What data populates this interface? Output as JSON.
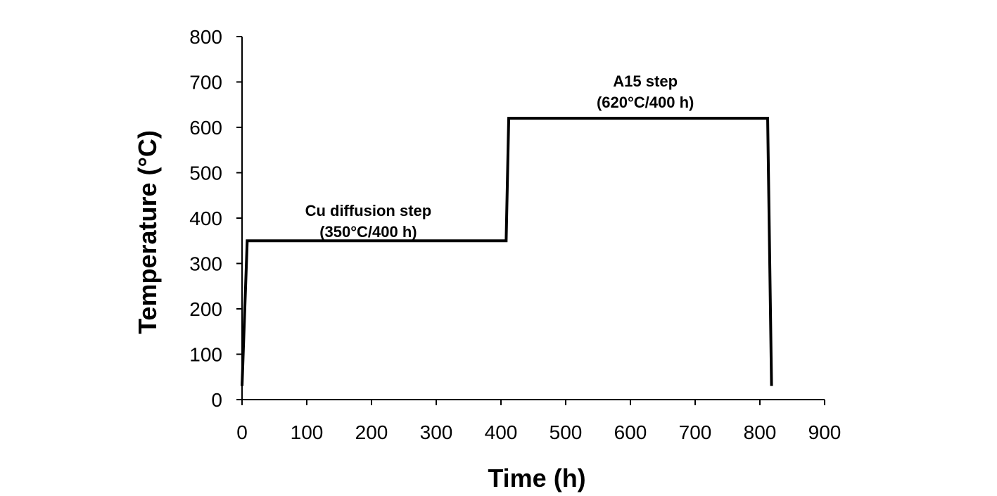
{
  "chart_data": {
    "type": "line",
    "xlabel": "Time (h)",
    "ylabel": "Temperature (°C)",
    "xlim": [
      0,
      900
    ],
    "ylim": [
      0,
      800
    ],
    "xticks": [
      0,
      100,
      200,
      300,
      400,
      500,
      600,
      700,
      800,
      900
    ],
    "yticks": [
      0,
      100,
      200,
      300,
      400,
      500,
      600,
      700,
      800
    ],
    "grid": false,
    "series": [
      {
        "x": [
          0,
          8,
          408,
          412,
          812,
          818
        ],
        "y": [
          30,
          350,
          350,
          620,
          620,
          30
        ],
        "color": "#000000"
      }
    ],
    "annotations": [
      {
        "lines": [
          "Cu diffusion step",
          "(350°C/400 h)"
        ],
        "x": 195,
        "y": 405
      },
      {
        "lines": [
          "A15 step",
          "(620°C/400 h)"
        ],
        "x": 623,
        "y": 690
      }
    ]
  }
}
